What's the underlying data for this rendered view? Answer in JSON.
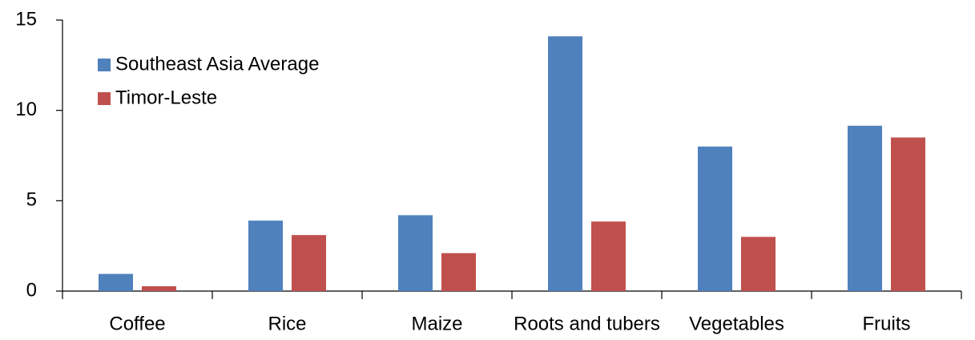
{
  "chart_data": {
    "type": "bar",
    "categories": [
      "Coffee",
      "Rice",
      "Maize",
      "Roots and tubers",
      "Vegetables",
      "Fruits"
    ],
    "series": [
      {
        "name": "Southeast Asia Average",
        "color": "#4f81bd",
        "values": [
          0.95,
          3.9,
          4.2,
          14.1,
          8.0,
          9.15
        ]
      },
      {
        "name": "Timor-Leste",
        "color": "#c0504d",
        "values": [
          0.27,
          3.1,
          2.1,
          3.85,
          3.0,
          8.5
        ]
      }
    ],
    "ylim": [
      0,
      15
    ],
    "yticks": [
      0,
      5,
      10,
      15
    ],
    "grid": false,
    "legend": "top-left"
  }
}
